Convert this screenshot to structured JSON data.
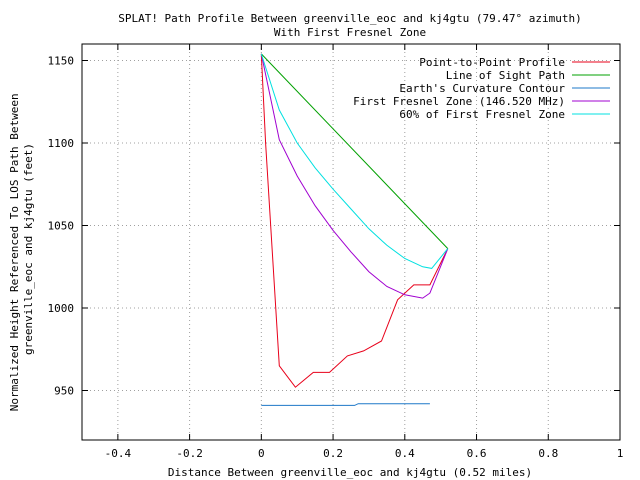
{
  "chart_data": {
    "type": "line",
    "title": "SPLAT! Path Profile Between greenville_eoc and kj4gtu (79.47° azimuth)",
    "subtitle": "With First Fresnel Zone",
    "xlabel": "Distance Between greenville_eoc and kj4gtu (0.52 miles)",
    "ylabel_lines": [
      "Normalized Height Referenced To LOS Path Between",
      "greenville_eoc and kj4gtu (feet)"
    ],
    "xlim": [
      -0.5,
      1.0
    ],
    "ylim": [
      920,
      1160
    ],
    "x_ticks": [
      {
        "value": -0.4,
        "label": "-0.4"
      },
      {
        "value": -0.2,
        "label": "-0.2"
      },
      {
        "value": 0,
        "label": "0"
      },
      {
        "value": 0.2,
        "label": "0.2"
      },
      {
        "value": 0.4,
        "label": "0.4"
      },
      {
        "value": 0.6,
        "label": "0.6"
      },
      {
        "value": 0.8,
        "label": "0.8"
      },
      {
        "value": 1.0,
        "label": "1"
      }
    ],
    "y_ticks": [
      {
        "value": 950,
        "label": "950"
      },
      {
        "value": 1000,
        "label": "1000"
      },
      {
        "value": 1050,
        "label": "1050"
      },
      {
        "value": 1100,
        "label": "1100"
      },
      {
        "value": 1150,
        "label": "1150"
      }
    ],
    "grid": true,
    "legend_position": "top-right",
    "series": [
      {
        "name": "Point-to-Point Profile",
        "color": "#e8001a",
        "x": [
          0,
          0.012,
          0.05,
          0.095,
          0.145,
          0.19,
          0.24,
          0.285,
          0.335,
          0.38,
          0.425,
          0.47,
          0.52
        ],
        "y": [
          1154,
          1100,
          965,
          952,
          961,
          961,
          971,
          974,
          980,
          1005,
          1014,
          1014,
          1036
        ]
      },
      {
        "name": "Line of Sight Path",
        "color": "#00a000",
        "x": [
          0,
          0.52
        ],
        "y": [
          1154,
          1036
        ]
      },
      {
        "name": "Earth's Curvature Contour",
        "color": "#1e78c8",
        "x": [
          0,
          0.1,
          0.2,
          0.26,
          0.27,
          0.35,
          0.47
        ],
        "y": [
          941,
          941,
          941,
          941,
          942,
          942,
          942
        ]
      },
      {
        "name": "First Fresnel Zone (146.520 MHz)",
        "color": "#a000d0",
        "x": [
          0,
          0.05,
          0.1,
          0.15,
          0.2,
          0.25,
          0.3,
          0.35,
          0.4,
          0.45,
          0.47,
          0.52
        ],
        "y": [
          1154,
          1102,
          1080,
          1062,
          1047,
          1034,
          1022,
          1013,
          1008,
          1006,
          1009,
          1036
        ]
      },
      {
        "name": "60% of First Fresnel Zone",
        "color": "#00e0e0",
        "x": [
          0,
          0.05,
          0.1,
          0.15,
          0.2,
          0.25,
          0.3,
          0.35,
          0.4,
          0.45,
          0.475,
          0.52
        ],
        "y": [
          1154,
          1120,
          1100,
          1085,
          1072,
          1060,
          1048,
          1038,
          1030,
          1025,
          1024,
          1036
        ]
      }
    ]
  }
}
